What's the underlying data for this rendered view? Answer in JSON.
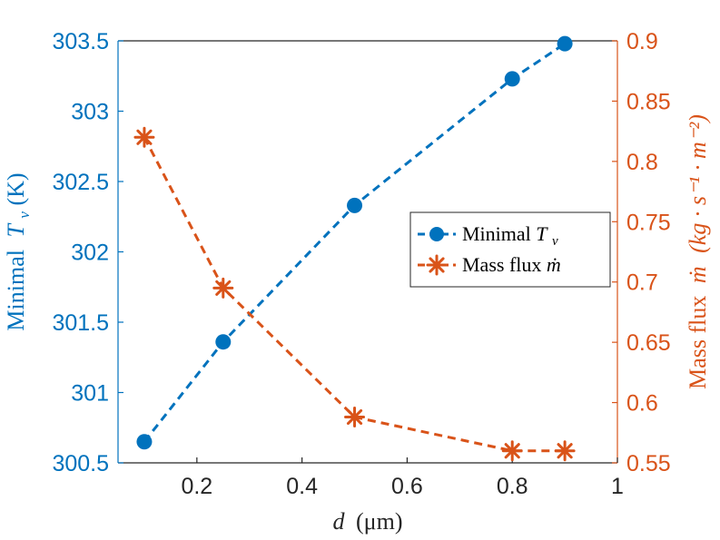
{
  "chart_data": {
    "type": "line",
    "x": [
      0.1,
      0.25,
      0.5,
      0.8,
      0.9
    ],
    "xlim": [
      0.05,
      1
    ],
    "xticks": [
      0.2,
      0.4,
      0.6,
      0.8,
      1
    ],
    "xtick_labels": [
      "0.2",
      "0.4",
      "0.6",
      "0.8",
      "1"
    ],
    "xlabel_var": "d",
    "xlabel_unit": "(μm)",
    "series": [
      {
        "name": "Minimal T_v",
        "axis": "left",
        "color": "#0072BD",
        "marker": "circle",
        "linestyle": "dashed",
        "values": [
          300.65,
          301.36,
          302.33,
          303.23,
          303.48
        ]
      },
      {
        "name": "Mass flux ṁ",
        "axis": "right",
        "color": "#D95319",
        "marker": "asterisk",
        "linestyle": "dashed",
        "values": [
          0.82,
          0.695,
          0.588,
          0.56,
          0.56
        ]
      }
    ],
    "left_axis": {
      "ylim": [
        300.5,
        303.5
      ],
      "ticks": [
        300.5,
        301,
        301.5,
        302,
        302.5,
        303,
        303.5
      ],
      "tick_labels": [
        "300.5",
        "301",
        "301.5",
        "302",
        "302.5",
        "303",
        "303.5"
      ],
      "label_text": "Minimal",
      "label_var": "T",
      "label_sub": "v",
      "label_unit": "(K)"
    },
    "right_axis": {
      "ylim": [
        0.55,
        0.9
      ],
      "ticks": [
        0.55,
        0.6,
        0.65,
        0.7,
        0.75,
        0.8,
        0.85,
        0.9
      ],
      "tick_labels": [
        "0.55",
        "0.6",
        "0.65",
        "0.7",
        "0.75",
        "0.8",
        "0.85",
        "0.9"
      ],
      "label_text": "Mass flux",
      "label_var": "ṁ",
      "label_unit": "(kg · s⁻¹ · m⁻²)"
    },
    "legend": {
      "location": "center-right",
      "entries": [
        {
          "text": "Minimal ",
          "var": "T",
          "sub": "v"
        },
        {
          "text": "Mass flux ",
          "var": "ṁ",
          "sub": ""
        }
      ]
    }
  }
}
